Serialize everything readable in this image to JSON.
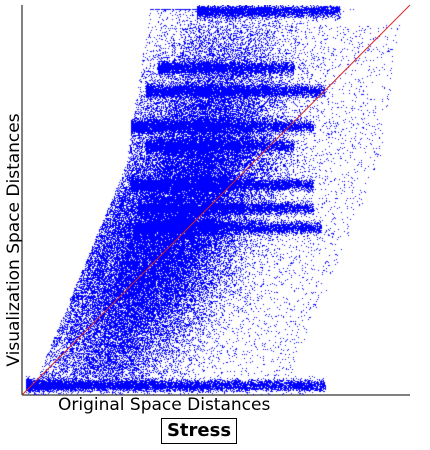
{
  "chart_data": {
    "type": "scatter",
    "title": "Stress",
    "xlabel": "Original Space Distances",
    "ylabel": "Visualization Space Distances",
    "xlim": [
      0,
      1
    ],
    "ylim": [
      0,
      1
    ],
    "grid": false,
    "legend": "none",
    "reference_line": {
      "from": [
        0,
        0
      ],
      "to": [
        1,
        1
      ],
      "color": "#d62728"
    },
    "point_color": "#0000ff",
    "density_ridges": [
      {
        "x": [
          0.01,
          0.78
        ],
        "y": 0.025
      },
      {
        "x": [
          0.29,
          0.77
        ],
        "y": 0.43
      },
      {
        "x": [
          0.3,
          0.75
        ],
        "y": 0.48
      },
      {
        "x": [
          0.28,
          0.75
        ],
        "y": 0.54
      },
      {
        "x": [
          0.32,
          0.7
        ],
        "y": 0.64
      },
      {
        "x": [
          0.28,
          0.75
        ],
        "y": 0.69
      },
      {
        "x": [
          0.32,
          0.78
        ],
        "y": 0.78
      },
      {
        "x": [
          0.35,
          0.7
        ],
        "y": 0.84
      },
      {
        "x": [
          0.45,
          0.82
        ],
        "y": 0.985
      }
    ]
  },
  "colors": {
    "background": "#ffffff",
    "axis": "#000000"
  }
}
